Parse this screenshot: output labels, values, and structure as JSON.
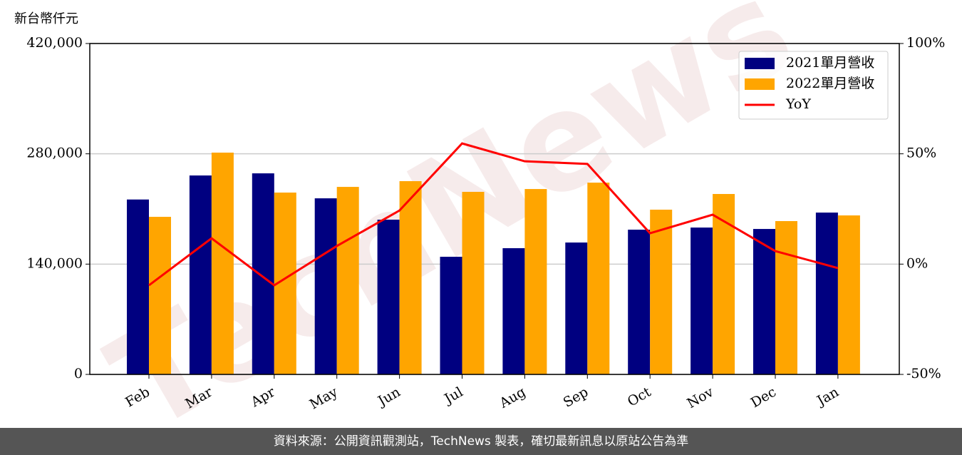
{
  "chart_data": {
    "type": "bar",
    "unit_label": "新台幣仟元",
    "watermark": "TechNews",
    "footer": "資料來源：公開資訊觀測站，TechNews 製表，確切最新訊息以原站公告為準",
    "categories": [
      "Feb",
      "Mar",
      "Apr",
      "May",
      "Jun",
      "Jul",
      "Aug",
      "Sep",
      "Oct",
      "Nov",
      "Dec",
      "Jan"
    ],
    "series": [
      {
        "name": "2021單月營收",
        "color": "#000080",
        "type": "bar",
        "values": [
          222000,
          252500,
          255200,
          223500,
          196400,
          149300,
          160200,
          167400,
          183700,
          186400,
          184600,
          205400
        ]
      },
      {
        "name": "2022單月營收",
        "color": "#ffa500",
        "type": "bar",
        "values": [
          200000,
          281500,
          230800,
          238000,
          245300,
          231700,
          235300,
          243400,
          209100,
          229000,
          194600,
          201800
        ]
      },
      {
        "name": "YoY",
        "color": "#ff0000",
        "type": "line",
        "axis": "y2",
        "values": [
          -9.6,
          11.7,
          -9.6,
          8.2,
          24.3,
          54.7,
          46.6,
          45.4,
          14.0,
          22.4,
          5.9,
          -1.8
        ]
      }
    ],
    "ylim": [
      0,
      420000
    ],
    "yticks": [
      0,
      {
        "value": 140000,
        "label": "140,000"
      },
      {
        "value": 280000,
        "label": "280,000"
      },
      {
        "value": 420000,
        "label": "420,000"
      }
    ],
    "y2lim": [
      -50,
      100
    ],
    "y2ticks": [
      {
        "value": -50,
        "label": "-50%"
      },
      {
        "value": 0,
        "label": "0%"
      },
      {
        "value": 50,
        "label": "50%"
      },
      {
        "value": 100,
        "label": "100%"
      }
    ],
    "grid": true,
    "legend": "upper right"
  }
}
